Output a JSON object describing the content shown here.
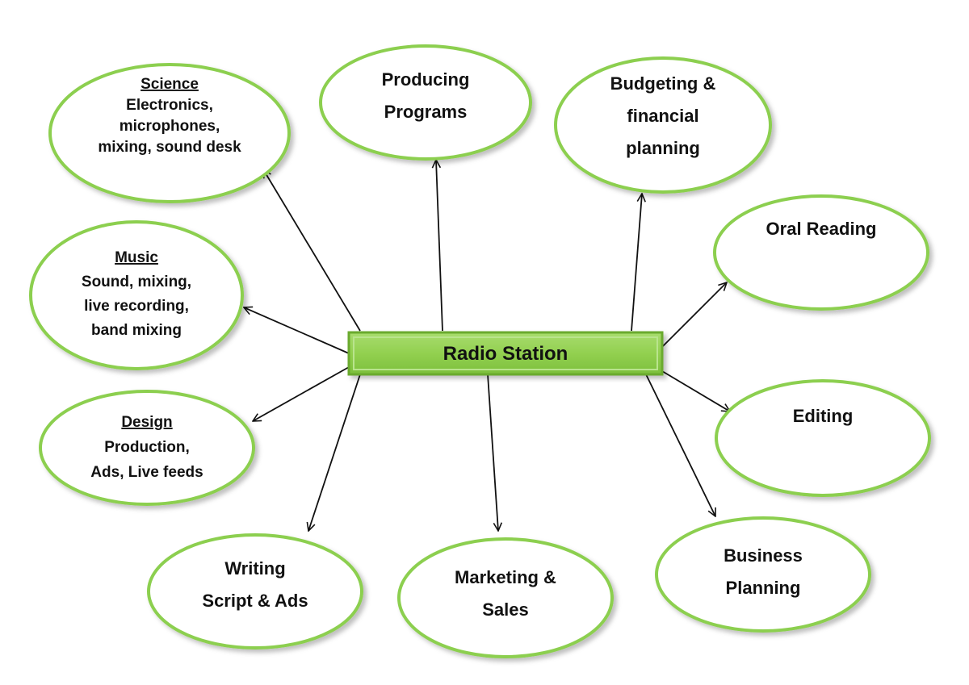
{
  "diagram": {
    "center": {
      "label": "Radio Station"
    },
    "nodes": [
      {
        "id": "science",
        "heading": "Science",
        "lines": [
          "Electronics,",
          "microphones,",
          "mixing, sound desk"
        ]
      },
      {
        "id": "producing",
        "heading": "",
        "lines": [
          "Producing",
          "Programs"
        ]
      },
      {
        "id": "budgeting",
        "heading": "",
        "lines": [
          "Budgeting &",
          "financial",
          "planning"
        ]
      },
      {
        "id": "music",
        "heading": "Music",
        "lines": [
          "Sound, mixing,",
          "live recording,",
          "band mixing"
        ]
      },
      {
        "id": "oral-reading",
        "heading": "",
        "lines": [
          "Oral Reading"
        ]
      },
      {
        "id": "design",
        "heading": "Design",
        "lines": [
          "Production,",
          "Ads, Live feeds"
        ]
      },
      {
        "id": "editing",
        "heading": "",
        "lines": [
          "Editing"
        ]
      },
      {
        "id": "writing",
        "heading": "",
        "lines": [
          "Writing",
          "Script & Ads"
        ]
      },
      {
        "id": "marketing",
        "heading": "",
        "lines": [
          "Marketing &",
          "Sales"
        ]
      },
      {
        "id": "business",
        "heading": "",
        "lines": [
          "Business",
          "Planning"
        ]
      }
    ],
    "colors": {
      "ellipse_stroke": "#8ccf4f",
      "ellipse_fill": "#ffffff",
      "center_fill": "#92d050",
      "center_border": "#6aaa2e",
      "arrow": "#111111",
      "text": "#111111"
    }
  }
}
